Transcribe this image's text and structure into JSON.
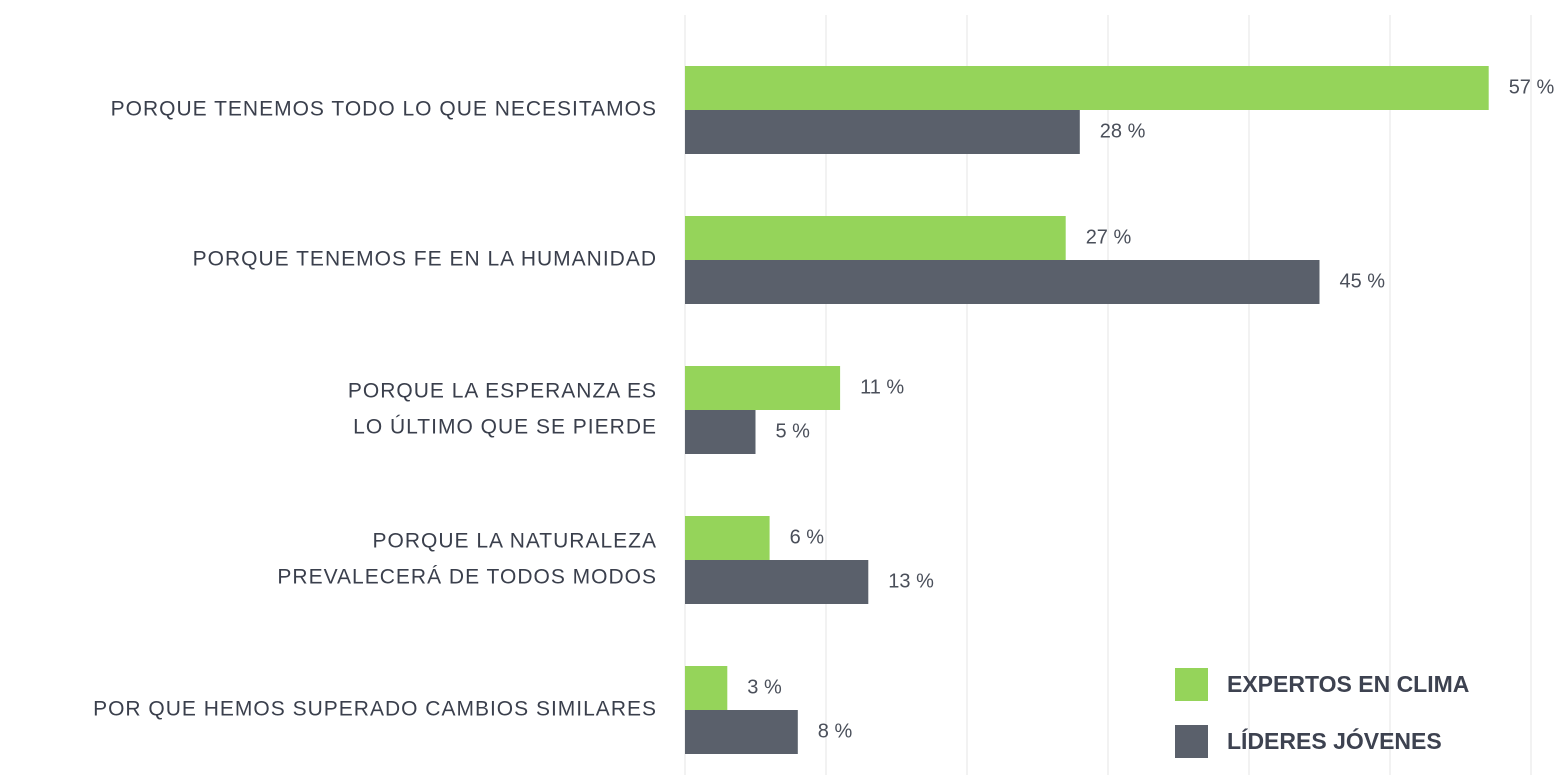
{
  "chart_data": {
    "type": "hbar",
    "categories": [
      [
        "PORQUE TENEMOS TODO LO QUE NECESITAMOS"
      ],
      [
        "PORQUE TENEMOS FE EN LA HUMANIDAD"
      ],
      [
        "PORQUE LA ESPERANZA ES",
        "LO ÚLTIMO QUE SE PIERDE"
      ],
      [
        "PORQUE LA NATURALEZA",
        "PREVALECERÁ DE TODOS MODOS"
      ],
      [
        "POR QUE HEMOS SUPERADO CAMBIOS SIMILARES"
      ]
    ],
    "series": [
      {
        "name": "EXPERTOS EN CLIMA",
        "color": "#95d45a",
        "values": [
          57,
          27,
          11,
          6,
          3
        ],
        "value_labels": [
          "57 %",
          "27 %",
          "11 %",
          "6 %",
          "3 %"
        ]
      },
      {
        "name": "LÍDERES JÓVENES",
        "color": "#5a606b",
        "values": [
          28,
          45,
          5,
          13,
          8
        ],
        "value_labels": [
          "28 %",
          "45 %",
          "5 %",
          "13 %",
          "8 %"
        ]
      }
    ],
    "xlim": [
      0,
      60
    ],
    "xticks": [
      0,
      10,
      20,
      30,
      40,
      50,
      60
    ],
    "grid": true,
    "legend": "lower right"
  }
}
